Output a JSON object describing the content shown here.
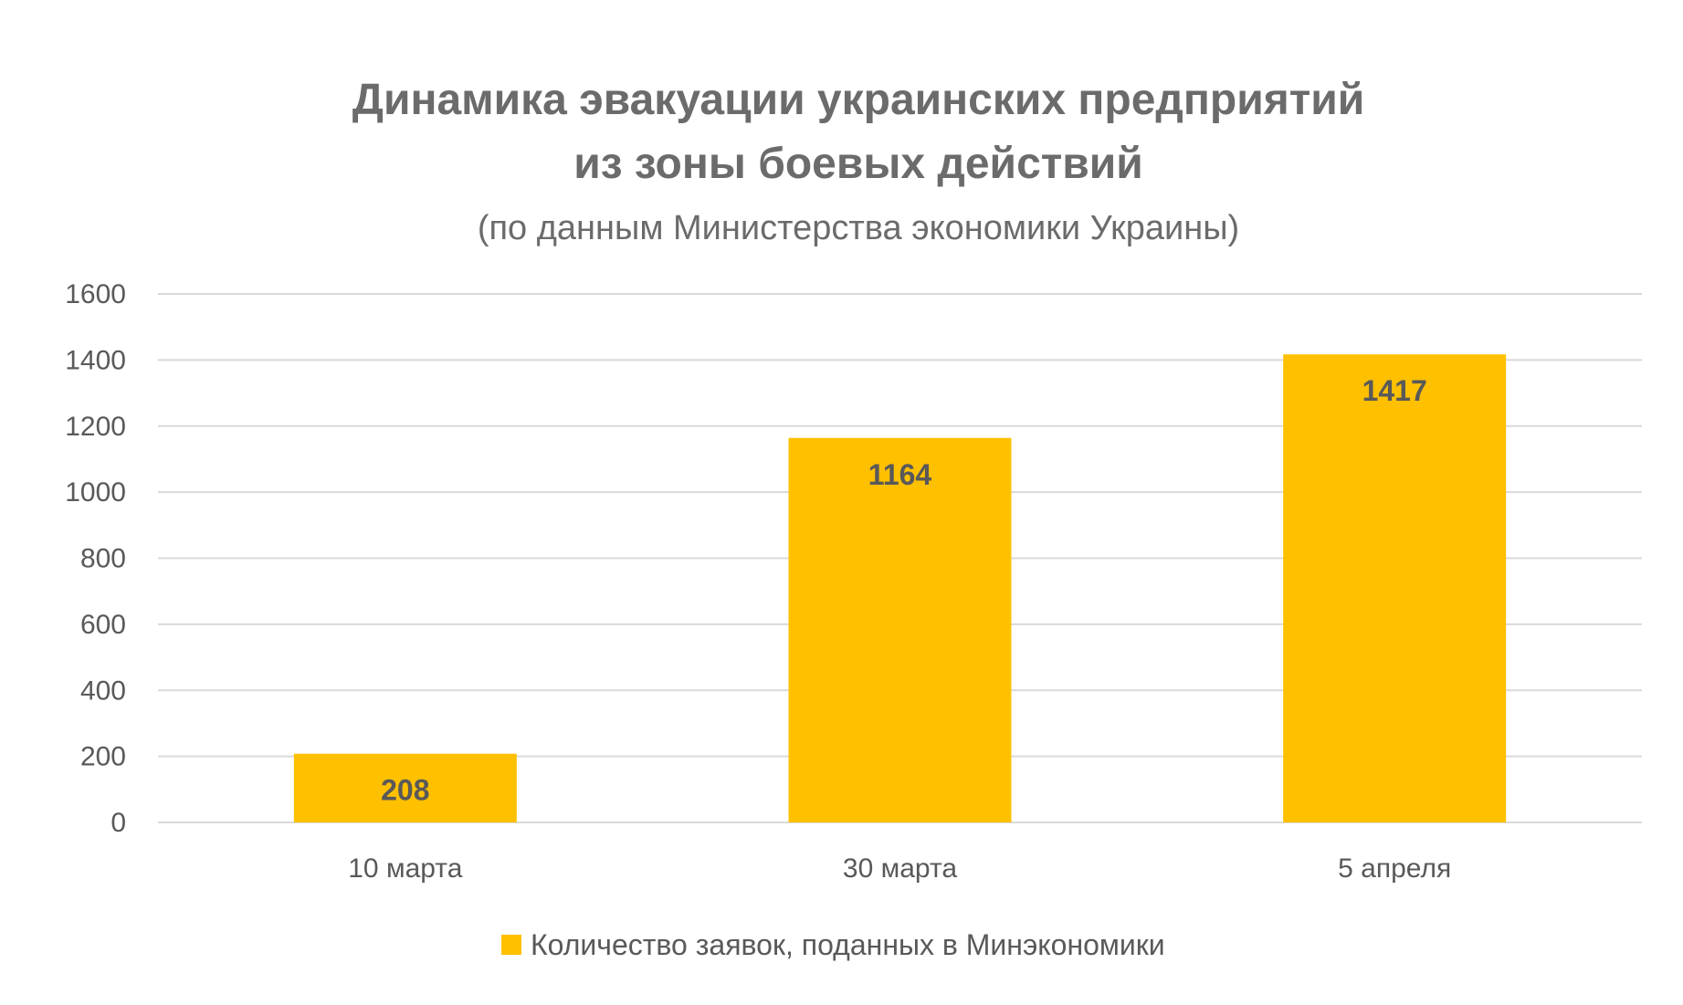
{
  "chart_data": {
    "type": "bar",
    "title_lines": [
      "Динамика эвакуации украинских предприятий",
      "из зоны боевых действий"
    ],
    "subtitle": "(по данным Министерства экономики Украины)",
    "categories": [
      "10 марта",
      "30 марта",
      "5 апреля"
    ],
    "series": [
      {
        "name": "Количество заявок, поданных в Минэкономики",
        "values": [
          208,
          1164,
          1417
        ],
        "color": "#ffc000"
      }
    ],
    "ylim": [
      0,
      1600
    ],
    "yticks": [
      0,
      200,
      400,
      600,
      800,
      1000,
      1200,
      1400,
      1600
    ],
    "grid": true,
    "legend_position": "bottom",
    "data_labels": [
      "208",
      "1164",
      "1417"
    ]
  }
}
